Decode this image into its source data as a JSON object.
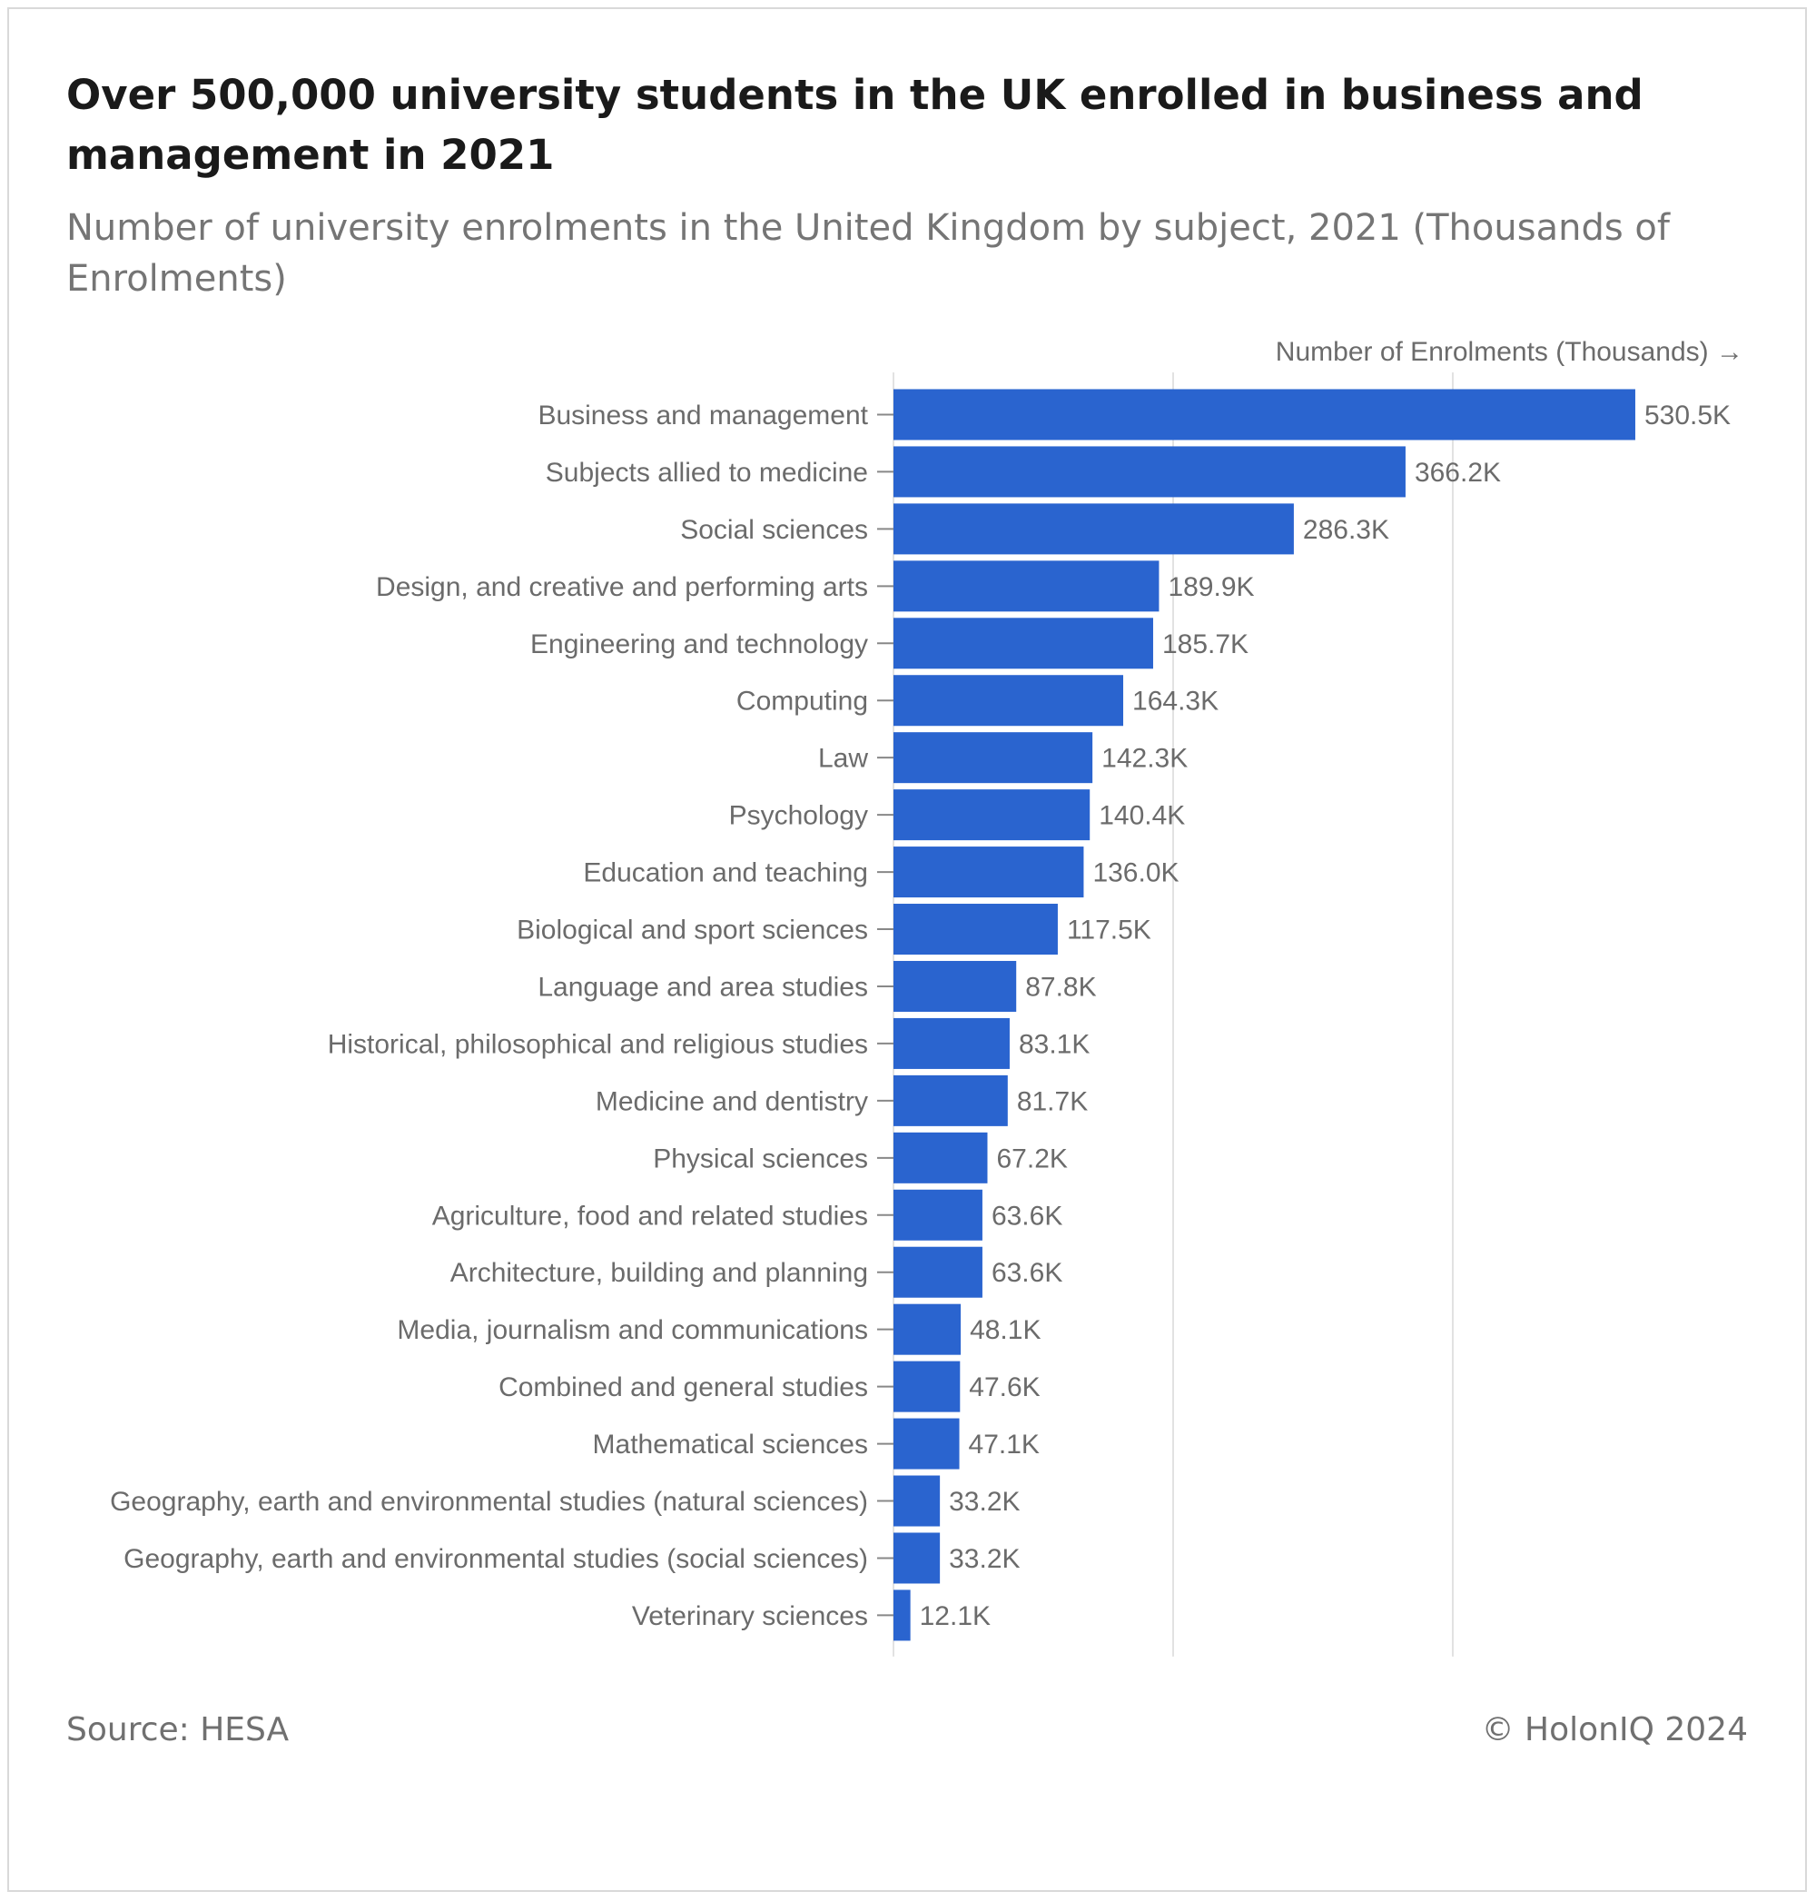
{
  "header": {
    "title": "Over 500,000 university students in the UK enrolled in business and management in 2021",
    "subtitle": "Number of university enrolments in the United Kingdom by subject, 2021 (Thousands of Enrolments)"
  },
  "footer": {
    "source": "Source: HESA",
    "copyright": "© HolonIQ 2024"
  },
  "colors": {
    "bar": "#2a64cf",
    "grid": "#e2e2e2",
    "text": "#6b6b6b"
  },
  "chart_data": {
    "type": "bar",
    "orientation": "horizontal",
    "xlabel": "Number of Enrolments (Thousands) →",
    "xlim": [
      0,
      600
    ],
    "grid": true,
    "value_format": "{v}K",
    "categories": [
      "Business and management",
      "Subjects allied to medicine",
      "Social sciences",
      "Design, and creative and performing arts",
      "Engineering and technology",
      "Computing",
      "Law",
      "Psychology",
      "Education and teaching",
      "Biological and sport sciences",
      "Language and area studies",
      "Historical, philosophical and religious studies",
      "Medicine and dentistry",
      "Physical sciences",
      "Agriculture, food and related studies",
      "Architecture, building and planning",
      "Media, journalism and communications",
      "Combined and general studies",
      "Mathematical sciences",
      "Geography, earth and environmental studies (natural sciences)",
      "Geography, earth and environmental studies (social sciences)",
      "Veterinary sciences"
    ],
    "values": [
      530.5,
      366.2,
      286.3,
      189.9,
      185.7,
      164.3,
      142.3,
      140.4,
      136.0,
      117.5,
      87.8,
      83.1,
      81.7,
      67.2,
      63.6,
      63.6,
      48.1,
      47.6,
      47.1,
      33.2,
      33.2,
      12.1
    ],
    "data_labels": [
      "530.5K",
      "366.2K",
      "286.3K",
      "189.9K",
      "185.7K",
      "164.3K",
      "142.3K",
      "140.4K",
      "136.0K",
      "117.5K",
      "87.8K",
      "83.1K",
      "81.7K",
      "67.2K",
      "63.6K",
      "63.6K",
      "48.1K",
      "47.6K",
      "47.1K",
      "33.2K",
      "33.2K",
      "12.1K"
    ]
  }
}
